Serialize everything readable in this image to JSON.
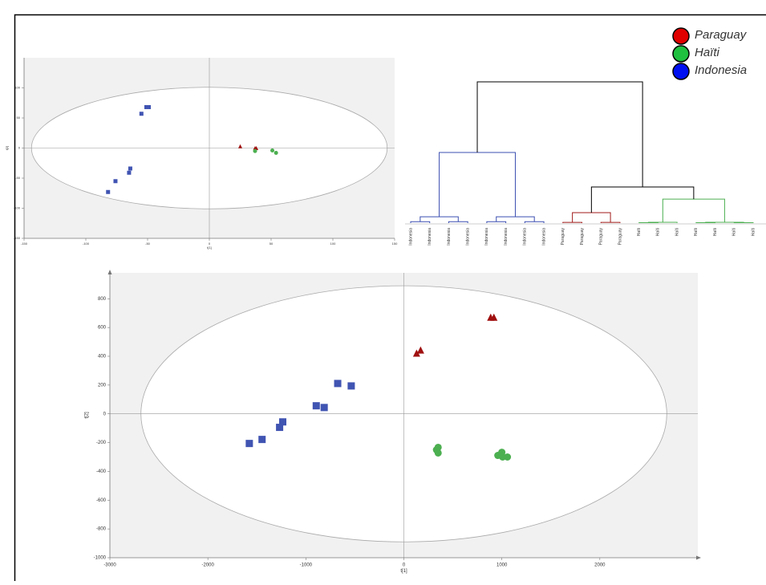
{
  "chart_data": [
    {
      "type": "scatter",
      "xlabel": "t[1]",
      "ylabel": "t[2]",
      "xlim": [
        -150,
        150
      ],
      "ylim": [
        -150,
        150
      ],
      "xticks": [
        -150,
        -100,
        -50,
        0,
        50,
        100,
        150
      ],
      "yticks": [
        -150,
        -100,
        -50,
        0,
        50,
        100
      ],
      "ellipse": [
        144,
        101
      ],
      "series": [
        {
          "marker": "square",
          "color": "#4054b2",
          "x": [
            -49,
            -51,
            -55,
            -64,
            -65,
            -76,
            -82
          ],
          "y": [
            68,
            68,
            57,
            -34,
            -41,
            -55,
            -73
          ]
        },
        {
          "marker": "triangle",
          "color": "#a01010",
          "x": [
            25,
            37,
            38
          ],
          "y": [
            3,
            0,
            0
          ]
        },
        {
          "marker": "circle",
          "color": "#4caf50",
          "x": [
            37,
            51,
            54
          ],
          "y": [
            -5,
            -4,
            -8
          ]
        }
      ]
    },
    {
      "type": "dendrogram",
      "leaves": [
        "Indonesia",
        "Indonesia",
        "Indonesia",
        "Indonesia",
        "Indonesia",
        "Indonesia",
        "Indonesia",
        "Indonesia",
        "Paraguay",
        "Paraguay",
        "Paraguay",
        "Paraguay",
        "Haïti",
        "Haïti",
        "Haïti",
        "Haïti",
        "Haïti",
        "Haïti",
        "Haïti"
      ],
      "ylim": [
        0,
        100
      ],
      "merges": [
        {
          "children": [
            0,
            1
          ],
          "height": 1,
          "color": "#3b4fb0"
        },
        {
          "children": [
            2,
            3
          ],
          "height": 1,
          "color": "#3b4fb0"
        },
        {
          "children": [
            19,
            20
          ],
          "height": 4.5,
          "color": "#3b4fb0"
        },
        {
          "children": [
            4,
            5
          ],
          "height": 1,
          "color": "#3b4fb0"
        },
        {
          "children": [
            6,
            7
          ],
          "height": 1,
          "color": "#3b4fb0"
        },
        {
          "children": [
            22,
            23
          ],
          "height": 4.5,
          "color": "#3b4fb0"
        },
        {
          "children": [
            21,
            24
          ],
          "height": 50,
          "color": "#3b4fb0"
        },
        {
          "children": [
            8,
            9
          ],
          "height": 0.5,
          "color": "#a01818"
        },
        {
          "children": [
            10,
            11
          ],
          "height": 0.5,
          "color": "#a01818"
        },
        {
          "children": [
            26,
            27
          ],
          "height": 7.4,
          "color": "#a01818"
        },
        {
          "children": [
            12,
            13
          ],
          "height": 0.3,
          "color": "#4caf50"
        },
        {
          "children": [
            29,
            14
          ],
          "height": 0.6,
          "color": "#4caf50"
        },
        {
          "children": [
            15,
            16
          ],
          "height": 0.3,
          "color": "#4caf50"
        },
        {
          "children": [
            17,
            18
          ],
          "height": 0.3,
          "color": "#4caf50"
        },
        {
          "children": [
            31,
            32
          ],
          "height": 0.6,
          "color": "#4caf50"
        },
        {
          "children": [
            30,
            33
          ],
          "height": 17,
          "color": "#4caf50"
        },
        {
          "children": [
            28,
            34
          ],
          "height": 25.6,
          "color": "#000000"
        },
        {
          "children": [
            25,
            35
          ],
          "height": 100,
          "color": "#000000"
        }
      ]
    },
    {
      "type": "scatter",
      "xlabel": "t[1]",
      "ylabel": "t[2]",
      "xlim": [
        -3000,
        3000
      ],
      "ylim": [
        -1000,
        980
      ],
      "xticks": [
        -3000,
        -2000,
        -1000,
        0,
        1000,
        2000
      ],
      "yticks": [
        -1000,
        -800,
        -600,
        -400,
        -200,
        0,
        200,
        400,
        600,
        800
      ],
      "ellipse": [
        2683,
        890
      ],
      "series": [
        {
          "marker": "square",
          "color": "#4054b2",
          "x": [
            -1577,
            -1447,
            -1268,
            -1236,
            -894,
            -813,
            -675,
            -537
          ],
          "y": [
            -206,
            -178,
            -94,
            -56,
            56,
            44,
            211,
            194
          ]
        },
        {
          "marker": "triangle",
          "color": "#a01010",
          "x": [
            130,
            171,
            886,
            919
          ],
          "y": [
            422,
            444,
            672,
            672
          ]
        },
        {
          "marker": "circle",
          "color": "#4caf50",
          "x": [
            350,
            333,
            350,
            1000,
            959,
            1008,
            1057
          ],
          "y": [
            -233,
            -250,
            -272,
            -267,
            -289,
            -300,
            -300
          ]
        }
      ]
    }
  ],
  "legend": [
    {
      "name": "Paraguay",
      "color": "#e00000"
    },
    {
      "name": "Haïti",
      "color": "#1fc040"
    },
    {
      "name": "Indonesia",
      "color": "#0010f0"
    }
  ]
}
